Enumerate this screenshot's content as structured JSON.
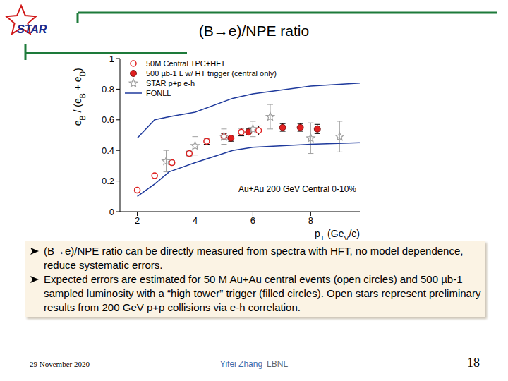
{
  "slide": {
    "title": "(B→e)/NPE ratio",
    "logo": "STAR",
    "bullets": [
      "(B→e)/NPE ratio can be directly measured from spectra with HFT, no model dependence, reduce systematic errors.",
      "Expected errors are estimated for 50 M Au+Au central events (open circles) and 500 µb-1 sampled luminosity with a “high tower” trigger (filled circles). Open stars represent preliminary results from 200 GeV p+p collisions via e-h correlation."
    ],
    "footer": {
      "date": "29 November 2020",
      "author": "Yifei Zhang",
      "affiliation": "LBNL",
      "page": 18
    }
  },
  "chart_data": {
    "type": "scatter",
    "xlabel": "pT (GeV/c)",
    "ylabel": "eB / (eB + eD)",
    "xlim": [
      1.4,
      9.7
    ],
    "xticks": [
      2,
      4,
      6,
      8
    ],
    "ylim": [
      0,
      1
    ],
    "yticks": [
      0,
      0.2,
      0.4,
      0.6,
      0.8,
      1
    ],
    "grid": false,
    "legend": "upper left",
    "annotations": [
      "Au+Au 200 GeV Central 0-10%"
    ],
    "series": [
      {
        "name": "50M Central TPC+HFT",
        "type": "scatter",
        "marker": "circle-open",
        "color": "#e02020",
        "x": [
          2.0,
          2.6,
          3.2,
          3.8,
          4.4,
          5.0,
          5.6,
          6.2
        ],
        "values": [
          0.14,
          0.235,
          0.32,
          0.38,
          0.46,
          0.49,
          0.52,
          0.53
        ],
        "errors": [
          0.01,
          0.01,
          0.012,
          0.015,
          0.02,
          0.02,
          0.025,
          0.03
        ]
      },
      {
        "name": "500 µb-1 L w/ HT trigger (central only)",
        "type": "scatter",
        "marker": "circle",
        "color": "#e02020",
        "x": [
          5.24,
          5.85,
          7.03,
          7.64,
          8.23
        ],
        "values": [
          0.48,
          0.52,
          0.55,
          0.55,
          0.54
        ],
        "errors": [
          0.02,
          0.02,
          0.025,
          0.025,
          0.03
        ]
      },
      {
        "name": "STAR p+p e-h",
        "type": "scatter",
        "marker": "star-open",
        "color": "#a0a0a0",
        "x": [
          3.0,
          4.0,
          5.0,
          6.0,
          6.6,
          8.0,
          9.0
        ],
        "values": [
          0.33,
          0.43,
          0.49,
          0.54,
          0.62,
          0.48,
          0.49
        ],
        "errors": [
          0.07,
          0.06,
          0.05,
          0.05,
          0.08,
          0.1,
          0.1
        ]
      },
      {
        "name": "FONLL",
        "type": "line",
        "color": "#1f3a9c",
        "x": [
          2.0,
          2.6,
          3.1,
          4.0,
          5.3,
          6.0,
          8.0,
          9.7
        ],
        "upper": [
          0.48,
          0.6,
          0.62,
          0.65,
          0.74,
          0.77,
          0.82,
          0.84
        ],
        "lower": [
          0.1,
          0.18,
          0.26,
          0.32,
          0.4,
          0.42,
          0.44,
          0.45
        ]
      }
    ]
  }
}
